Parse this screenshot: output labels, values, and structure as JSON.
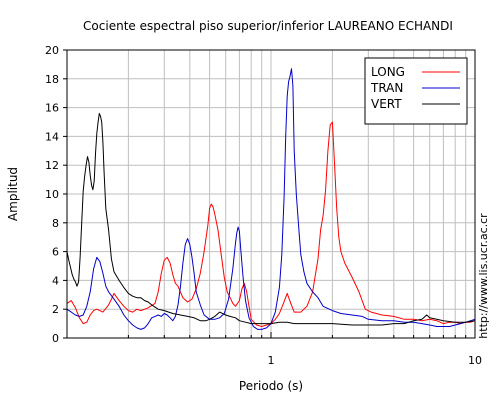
{
  "chart_data": {
    "type": "line",
    "title": "Cociente espectral piso superior/inferior LAUREANO ECHANDI",
    "xlabel": "Periodo (s)",
    "ylabel": "Amplitud",
    "x_scale": "log",
    "xlim": [
      0.1,
      10
    ],
    "ylim": [
      0,
      20
    ],
    "x_ticks": [
      1,
      10
    ],
    "y_ticks": [
      0,
      2,
      4,
      6,
      8,
      10,
      12,
      14,
      16,
      18,
      20
    ],
    "grid": true,
    "legend_position": "top-right",
    "side_text": "http://www.lis.ucr.ac.cr",
    "series": [
      {
        "name": "LONG",
        "color": "#ff0000",
        "points": [
          [
            0.1,
            2.4
          ],
          [
            0.105,
            2.6
          ],
          [
            0.11,
            2.1
          ],
          [
            0.115,
            1.4
          ],
          [
            0.12,
            1.0
          ],
          [
            0.125,
            1.1
          ],
          [
            0.13,
            1.6
          ],
          [
            0.135,
            1.9
          ],
          [
            0.14,
            2.0
          ],
          [
            0.15,
            1.8
          ],
          [
            0.16,
            2.3
          ],
          [
            0.165,
            2.7
          ],
          [
            0.17,
            3.1
          ],
          [
            0.18,
            2.6
          ],
          [
            0.19,
            2.2
          ],
          [
            0.2,
            1.9
          ],
          [
            0.21,
            1.8
          ],
          [
            0.22,
            2.0
          ],
          [
            0.23,
            1.9
          ],
          [
            0.25,
            2.1
          ],
          [
            0.27,
            2.4
          ],
          [
            0.28,
            3.2
          ],
          [
            0.29,
            4.5
          ],
          [
            0.3,
            5.4
          ],
          [
            0.31,
            5.6
          ],
          [
            0.32,
            5.2
          ],
          [
            0.33,
            4.4
          ],
          [
            0.34,
            3.8
          ],
          [
            0.35,
            3.6
          ],
          [
            0.37,
            2.8
          ],
          [
            0.39,
            2.5
          ],
          [
            0.41,
            2.7
          ],
          [
            0.43,
            3.4
          ],
          [
            0.45,
            4.5
          ],
          [
            0.47,
            6.0
          ],
          [
            0.49,
            7.8
          ],
          [
            0.5,
            9.0
          ],
          [
            0.51,
            9.3
          ],
          [
            0.52,
            9.1
          ],
          [
            0.53,
            8.6
          ],
          [
            0.55,
            7.5
          ],
          [
            0.57,
            5.8
          ],
          [
            0.59,
            4.2
          ],
          [
            0.61,
            3.2
          ],
          [
            0.63,
            2.8
          ],
          [
            0.65,
            2.4
          ],
          [
            0.67,
            2.2
          ],
          [
            0.7,
            2.6
          ],
          [
            0.72,
            3.4
          ],
          [
            0.74,
            3.8
          ],
          [
            0.76,
            3.2
          ],
          [
            0.78,
            2.2
          ],
          [
            0.8,
            1.3
          ],
          [
            0.85,
            0.9
          ],
          [
            0.9,
            0.8
          ],
          [
            0.95,
            0.9
          ],
          [
            1.0,
            1.0
          ],
          [
            1.05,
            1.3
          ],
          [
            1.1,
            1.7
          ],
          [
            1.15,
            2.4
          ],
          [
            1.2,
            3.1
          ],
          [
            1.25,
            2.4
          ],
          [
            1.3,
            1.8
          ],
          [
            1.4,
            1.8
          ],
          [
            1.5,
            2.2
          ],
          [
            1.6,
            3.2
          ],
          [
            1.7,
            5.5
          ],
          [
            1.75,
            7.5
          ],
          [
            1.8,
            8.5
          ],
          [
            1.85,
            10.2
          ],
          [
            1.9,
            13.0
          ],
          [
            1.95,
            14.8
          ],
          [
            2.0,
            15.0
          ],
          [
            2.05,
            12.0
          ],
          [
            2.1,
            9.0
          ],
          [
            2.15,
            7.0
          ],
          [
            2.2,
            6.0
          ],
          [
            2.3,
            5.2
          ],
          [
            2.5,
            4.2
          ],
          [
            2.7,
            3.2
          ],
          [
            2.9,
            2.0
          ],
          [
            3.1,
            1.8
          ],
          [
            3.5,
            1.6
          ],
          [
            4.0,
            1.5
          ],
          [
            4.5,
            1.3
          ],
          [
            5.0,
            1.3
          ],
          [
            5.5,
            1.2
          ],
          [
            6.0,
            1.3
          ],
          [
            6.5,
            1.2
          ],
          [
            7.0,
            1.0
          ],
          [
            7.5,
            1.1
          ],
          [
            8.0,
            1.1
          ],
          [
            8.5,
            1.0
          ],
          [
            9.0,
            1.1
          ],
          [
            9.5,
            1.1
          ],
          [
            10.0,
            1.2
          ]
        ]
      },
      {
        "name": "TRAN",
        "color": "#0000cc",
        "points": [
          [
            0.1,
            2.0
          ],
          [
            0.105,
            1.8
          ],
          [
            0.11,
            1.6
          ],
          [
            0.115,
            1.5
          ],
          [
            0.12,
            1.6
          ],
          [
            0.125,
            2.2
          ],
          [
            0.13,
            3.2
          ],
          [
            0.135,
            4.8
          ],
          [
            0.14,
            5.6
          ],
          [
            0.145,
            5.3
          ],
          [
            0.15,
            4.5
          ],
          [
            0.155,
            3.6
          ],
          [
            0.16,
            3.2
          ],
          [
            0.17,
            2.7
          ],
          [
            0.18,
            2.2
          ],
          [
            0.19,
            1.6
          ],
          [
            0.2,
            1.2
          ],
          [
            0.21,
            0.9
          ],
          [
            0.22,
            0.7
          ],
          [
            0.23,
            0.6
          ],
          [
            0.24,
            0.7
          ],
          [
            0.25,
            1.0
          ],
          [
            0.26,
            1.4
          ],
          [
            0.27,
            1.5
          ],
          [
            0.28,
            1.6
          ],
          [
            0.29,
            1.5
          ],
          [
            0.3,
            1.7
          ],
          [
            0.31,
            1.6
          ],
          [
            0.32,
            1.4
          ],
          [
            0.33,
            1.2
          ],
          [
            0.34,
            1.5
          ],
          [
            0.35,
            2.3
          ],
          [
            0.36,
            3.6
          ],
          [
            0.37,
            5.2
          ],
          [
            0.38,
            6.5
          ],
          [
            0.39,
            6.9
          ],
          [
            0.4,
            6.5
          ],
          [
            0.41,
            5.6
          ],
          [
            0.42,
            4.5
          ],
          [
            0.43,
            3.2
          ],
          [
            0.45,
            2.3
          ],
          [
            0.47,
            1.6
          ],
          [
            0.5,
            1.3
          ],
          [
            0.53,
            1.3
          ],
          [
            0.56,
            1.4
          ],
          [
            0.59,
            1.7
          ],
          [
            0.62,
            2.7
          ],
          [
            0.65,
            4.8
          ],
          [
            0.67,
            6.6
          ],
          [
            0.68,
            7.3
          ],
          [
            0.69,
            7.7
          ],
          [
            0.7,
            7.4
          ],
          [
            0.71,
            6.2
          ],
          [
            0.73,
            4.2
          ],
          [
            0.75,
            2.6
          ],
          [
            0.78,
            1.4
          ],
          [
            0.82,
            0.8
          ],
          [
            0.86,
            0.6
          ],
          [
            0.9,
            0.6
          ],
          [
            0.95,
            0.7
          ],
          [
            1.0,
            1.0
          ],
          [
            1.05,
            1.8
          ],
          [
            1.1,
            3.5
          ],
          [
            1.13,
            5.8
          ],
          [
            1.16,
            9.8
          ],
          [
            1.18,
            14.0
          ],
          [
            1.2,
            16.8
          ],
          [
            1.22,
            17.8
          ],
          [
            1.24,
            18.2
          ],
          [
            1.26,
            18.7
          ],
          [
            1.28,
            17.5
          ],
          [
            1.3,
            13.0
          ],
          [
            1.33,
            10.0
          ],
          [
            1.37,
            7.5
          ],
          [
            1.4,
            5.8
          ],
          [
            1.45,
            4.6
          ],
          [
            1.5,
            3.8
          ],
          [
            1.6,
            3.2
          ],
          [
            1.7,
            2.8
          ],
          [
            1.8,
            2.2
          ],
          [
            2.0,
            1.9
          ],
          [
            2.2,
            1.7
          ],
          [
            2.5,
            1.6
          ],
          [
            2.8,
            1.5
          ],
          [
            3.0,
            1.3
          ],
          [
            3.5,
            1.2
          ],
          [
            4.0,
            1.2
          ],
          [
            4.5,
            1.1
          ],
          [
            5.0,
            1.1
          ],
          [
            5.5,
            1.0
          ],
          [
            6.0,
            0.9
          ],
          [
            6.5,
            0.8
          ],
          [
            7.0,
            0.8
          ],
          [
            7.5,
            0.8
          ],
          [
            8.0,
            0.9
          ],
          [
            8.5,
            1.0
          ],
          [
            9.0,
            1.1
          ],
          [
            9.5,
            1.2
          ],
          [
            10.0,
            1.3
          ]
        ]
      },
      {
        "name": "VERT",
        "color": "#000000",
        "points": [
          [
            0.1,
            6.0
          ],
          [
            0.102,
            5.4
          ],
          [
            0.104,
            4.9
          ],
          [
            0.106,
            4.4
          ],
          [
            0.108,
            4.1
          ],
          [
            0.11,
            3.9
          ],
          [
            0.112,
            3.6
          ],
          [
            0.114,
            3.9
          ],
          [
            0.116,
            5.6
          ],
          [
            0.118,
            8.0
          ],
          [
            0.12,
            10.2
          ],
          [
            0.122,
            11.2
          ],
          [
            0.124,
            12.0
          ],
          [
            0.126,
            12.6
          ],
          [
            0.128,
            12.2
          ],
          [
            0.13,
            11.3
          ],
          [
            0.132,
            10.6
          ],
          [
            0.134,
            10.3
          ],
          [
            0.136,
            10.9
          ],
          [
            0.138,
            12.8
          ],
          [
            0.14,
            14.2
          ],
          [
            0.142,
            15.0
          ],
          [
            0.144,
            15.6
          ],
          [
            0.146,
            15.4
          ],
          [
            0.148,
            15.0
          ],
          [
            0.15,
            13.6
          ],
          [
            0.152,
            11.5
          ],
          [
            0.155,
            9.0
          ],
          [
            0.16,
            7.5
          ],
          [
            0.165,
            5.5
          ],
          [
            0.17,
            4.6
          ],
          [
            0.18,
            4.0
          ],
          [
            0.19,
            3.5
          ],
          [
            0.2,
            3.1
          ],
          [
            0.21,
            2.9
          ],
          [
            0.22,
            2.8
          ],
          [
            0.23,
            2.8
          ],
          [
            0.24,
            2.6
          ],
          [
            0.25,
            2.5
          ],
          [
            0.26,
            2.3
          ],
          [
            0.28,
            2.0
          ],
          [
            0.3,
            1.9
          ],
          [
            0.33,
            1.7
          ],
          [
            0.36,
            1.6
          ],
          [
            0.39,
            1.5
          ],
          [
            0.42,
            1.4
          ],
          [
            0.45,
            1.2
          ],
          [
            0.48,
            1.2
          ],
          [
            0.5,
            1.3
          ],
          [
            0.53,
            1.5
          ],
          [
            0.56,
            1.8
          ],
          [
            0.6,
            1.6
          ],
          [
            0.63,
            1.5
          ],
          [
            0.67,
            1.4
          ],
          [
            0.7,
            1.2
          ],
          [
            0.75,
            1.1
          ],
          [
            0.8,
            1.0
          ],
          [
            0.85,
            1.0
          ],
          [
            0.9,
            1.0
          ],
          [
            1.0,
            1.0
          ],
          [
            1.1,
            1.1
          ],
          [
            1.2,
            1.1
          ],
          [
            1.3,
            1.0
          ],
          [
            1.5,
            1.0
          ],
          [
            1.7,
            1.0
          ],
          [
            2.0,
            1.0
          ],
          [
            2.5,
            0.9
          ],
          [
            3.0,
            0.9
          ],
          [
            3.5,
            0.9
          ],
          [
            4.0,
            1.0
          ],
          [
            4.5,
            1.0
          ],
          [
            5.0,
            1.2
          ],
          [
            5.5,
            1.3
          ],
          [
            5.8,
            1.6
          ],
          [
            6.0,
            1.4
          ],
          [
            6.5,
            1.3
          ],
          [
            7.0,
            1.2
          ],
          [
            8.0,
            1.1
          ],
          [
            9.0,
            1.1
          ],
          [
            10.0,
            1.2
          ]
        ]
      }
    ]
  }
}
